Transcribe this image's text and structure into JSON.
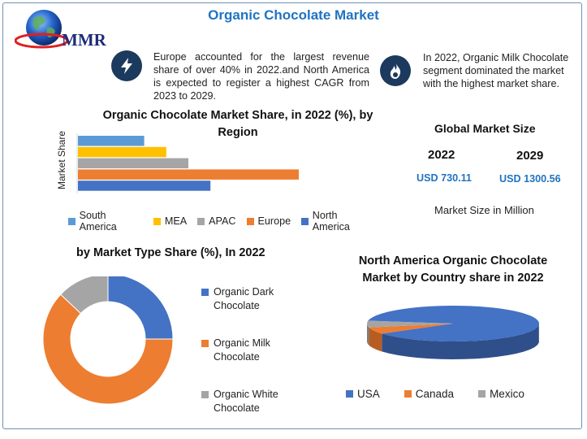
{
  "header": {
    "title": "Organic Chocolate Market",
    "logo_text": "MMR"
  },
  "info": {
    "left_text": "Europe accounted for the largest revenue share of over 40% in 2022.and North America is expected to register a highest CAGR from 2023 to 2029.",
    "right_text": "In 2022, Organic Milk Chocolate segment dominated the market with the highest market share."
  },
  "global_market": {
    "title": "Global Market Size",
    "year_a": "2022",
    "year_b": "2029",
    "value_a": "USD 730.11",
    "value_b": "USD 1300.56",
    "unit_note": "Market Size in Million"
  },
  "colors": {
    "south_america": "#5b9bd5",
    "mea": "#ffc000",
    "apac": "#a5a5a5",
    "europe": "#ed7d31",
    "north_america": "#4472c4",
    "accent": "#1f73c2"
  },
  "chart_data": [
    {
      "type": "bar",
      "orientation": "horizontal",
      "title": "Organic Chocolate Market Share, in 2022 (%), by Region",
      "ylabel": "Market Share",
      "xlabel": "",
      "categories": [
        "South America",
        "MEA",
        "APAC",
        "Europe",
        "North America"
      ],
      "values": [
        12,
        16,
        20,
        40,
        24
      ],
      "xlim": [
        0,
        50
      ],
      "legend": "bottom"
    },
    {
      "type": "pie",
      "variant": "donut",
      "title": "by Market Type Share (%), In 2022",
      "labels": [
        "Organic Dark Chocolate",
        "Organic Milk Chocolate",
        "Organic White Chocolate"
      ],
      "values": [
        25,
        62,
        13
      ],
      "legend": "right"
    },
    {
      "type": "pie",
      "variant": "3d",
      "title": "North America Organic Chocolate Market  by Country share in 2022",
      "labels": [
        "USA",
        "Canada",
        "Mexico"
      ],
      "values": [
        88,
        6,
        6
      ],
      "legend": "bottom"
    }
  ]
}
